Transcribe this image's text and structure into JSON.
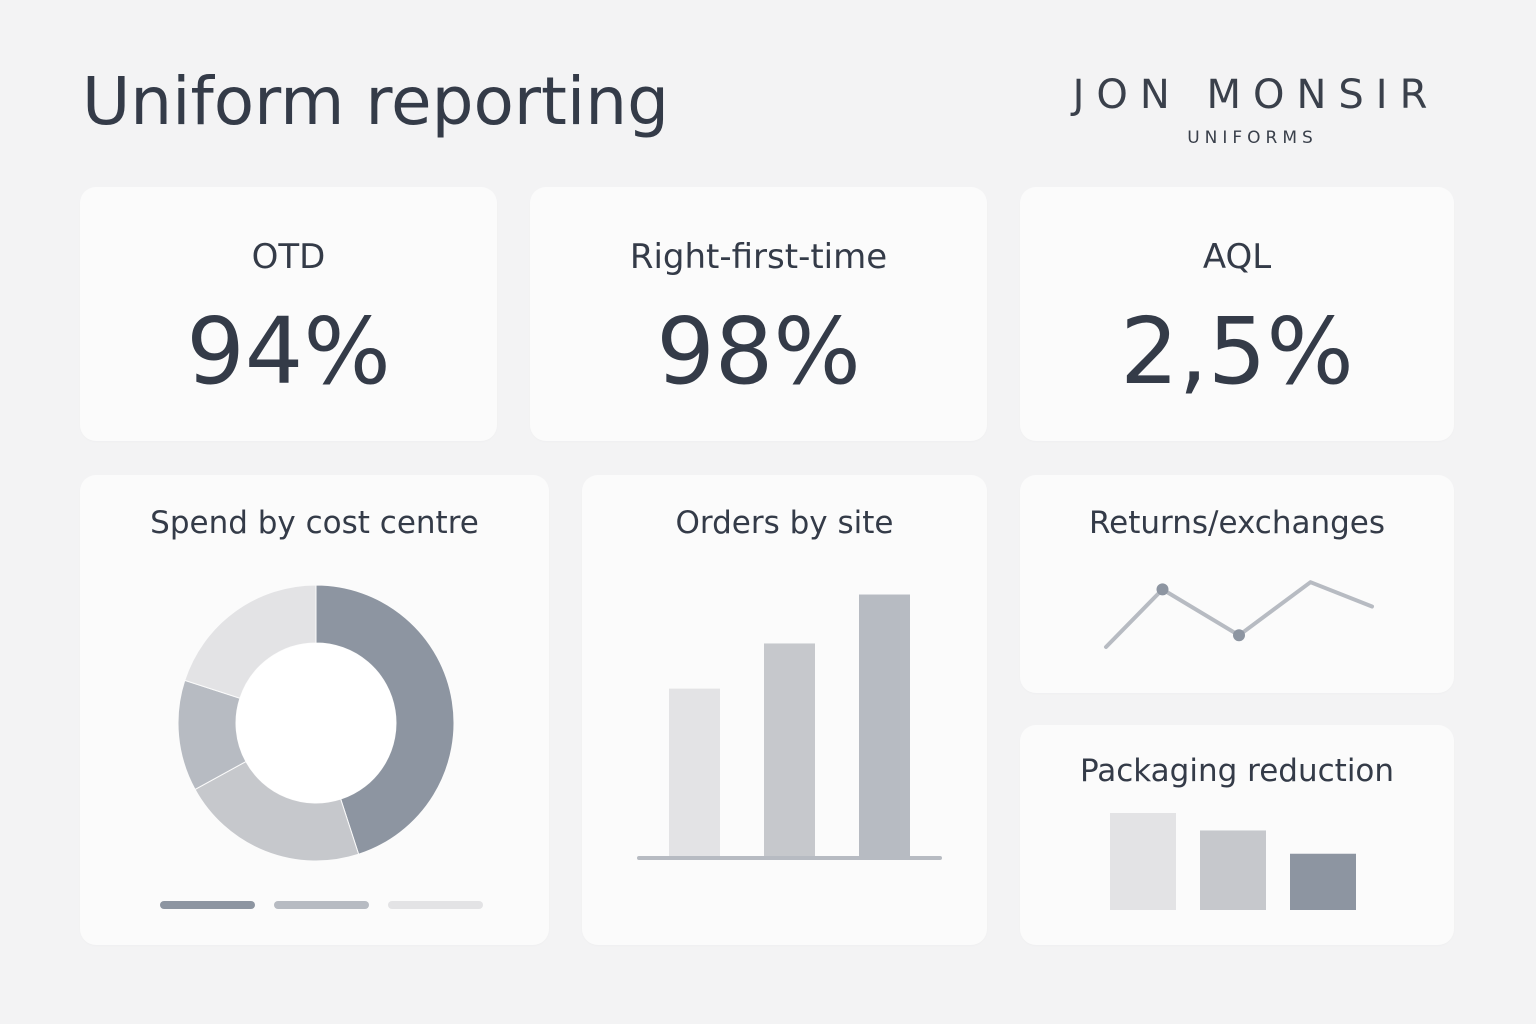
{
  "header": {
    "title": "Uniform reporting",
    "brand_name": "JON MONSIR",
    "brand_sub": "UNIFORMS"
  },
  "kpis": [
    {
      "label": "OTD",
      "value": "94%"
    },
    {
      "label": "Right-first-time",
      "value": "98%"
    },
    {
      "label": "AQL",
      "value": "2,5%"
    }
  ],
  "colors": {
    "background": "#f3f3f4",
    "card": "#fbfbfb",
    "text": "#343b48",
    "dark": "#8d95a1",
    "mid": "#b7bbc2",
    "light": "#e3e3e5",
    "midlight": "#c6c8cc"
  },
  "chart_data": [
    {
      "type": "pie",
      "title": "Spend by cost centre",
      "values": [
        45,
        22,
        13,
        20
      ],
      "legend_entries": 3
    },
    {
      "type": "bar",
      "title": "Orders by site",
      "values": [
        45,
        57,
        70
      ],
      "ylim": [
        0,
        72
      ]
    },
    {
      "type": "line",
      "title": "Returns/exchanges",
      "values": [
        2,
        8.4,
        3.3,
        9.2,
        6.5
      ],
      "ylim": [
        0,
        10
      ],
      "marked_points": [
        1,
        2
      ]
    },
    {
      "type": "bar",
      "title": "Packaging reduction",
      "values": [
        100,
        82,
        58
      ],
      "ylim": [
        0,
        100
      ]
    }
  ]
}
